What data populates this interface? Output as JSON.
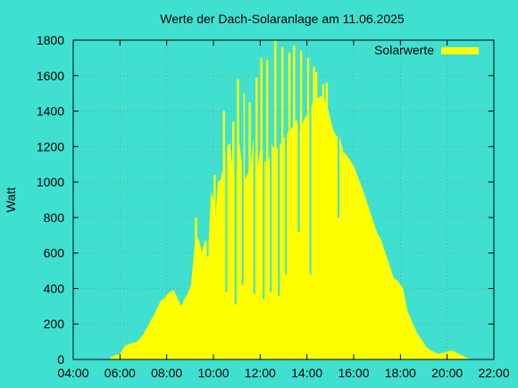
{
  "chart_data": {
    "type": "area",
    "title": "Werte der Dach-Solaranlage am 11.06.2025",
    "xlabel": "",
    "ylabel": "Watt",
    "x_unit": "hours",
    "xlim": [
      4,
      22
    ],
    "ylim": [
      0,
      1800
    ],
    "xticks": [
      "04:00",
      "06:00",
      "08:00",
      "10:00",
      "12:00",
      "14:00",
      "16:00",
      "18:00",
      "20:00",
      "22:00"
    ],
    "yticks": [
      "0",
      "200",
      "400",
      "600",
      "800",
      "1000",
      "1200",
      "1400",
      "1600",
      "1800"
    ],
    "grid": true,
    "legend_position": "top-right",
    "colors": {
      "background": "#40e0d0",
      "series": "#ffff00",
      "axis": "#000000",
      "grid": "#808080"
    },
    "series": [
      {
        "name": "Solarwerte",
        "x": [
          5.6,
          5.75,
          6.0,
          6.25,
          6.5,
          6.75,
          7.0,
          7.25,
          7.5,
          7.75,
          7.95,
          8.05,
          8.3,
          8.6,
          8.9,
          9.05,
          9.2,
          9.3,
          9.4,
          9.5,
          9.65,
          9.8,
          9.9,
          10.0,
          10.1,
          10.2,
          10.3,
          10.4,
          10.55,
          10.7,
          10.85,
          11.0,
          11.1,
          11.3,
          11.45,
          11.6,
          11.7,
          11.9,
          12.05,
          12.2,
          12.4,
          12.5,
          12.65,
          12.75,
          12.9,
          13.05,
          13.2,
          13.4,
          13.55,
          13.7,
          13.85,
          14.0,
          14.15,
          14.25,
          14.45,
          14.55,
          14.7,
          14.85,
          14.95,
          15.1,
          15.25,
          15.4,
          15.55,
          15.7,
          15.85,
          16.0,
          16.2,
          16.4,
          16.6,
          16.8,
          17.0,
          17.15,
          17.3,
          17.5,
          17.7,
          17.9,
          18.1,
          18.3,
          18.5,
          18.7,
          18.9,
          19.1,
          19.3,
          19.6,
          19.9,
          20.2,
          20.5,
          20.8,
          21.0
        ],
        "values": [
          10,
          20,
          30,
          80,
          90,
          100,
          140,
          200,
          260,
          330,
          350,
          370,
          390,
          300,
          370,
          420,
          640,
          690,
          660,
          600,
          670,
          650,
          940,
          900,
          790,
          1000,
          1010,
          1060,
          1190,
          1220,
          1020,
          1080,
          1220,
          1000,
          1040,
          1080,
          1230,
          1080,
          1220,
          1110,
          1130,
          1210,
          1180,
          1190,
          1220,
          1250,
          1280,
          1310,
          1350,
          1290,
          1340,
          1380,
          1400,
          1450,
          1470,
          1480,
          1480,
          1430,
          1380,
          1300,
          1260,
          1250,
          1170,
          1150,
          1120,
          1090,
          1020,
          950,
          870,
          790,
          710,
          680,
          620,
          540,
          460,
          440,
          400,
          270,
          210,
          150,
          110,
          70,
          50,
          30,
          40,
          50,
          30,
          10,
          0
        ],
        "spikes": [
          {
            "x": 9.25,
            "v": 800
          },
          {
            "x": 10.05,
            "v": 1040
          },
          {
            "x": 10.25,
            "v": 900
          },
          {
            "x": 10.45,
            "v": 1400
          },
          {
            "x": 10.85,
            "v": 1340
          },
          {
            "x": 11.05,
            "v": 1580
          },
          {
            "x": 11.3,
            "v": 1500
          },
          {
            "x": 11.55,
            "v": 1450
          },
          {
            "x": 11.85,
            "v": 1590
          },
          {
            "x": 12.05,
            "v": 1700
          },
          {
            "x": 12.3,
            "v": 1690
          },
          {
            "x": 12.65,
            "v": 1800
          },
          {
            "x": 12.95,
            "v": 1760
          },
          {
            "x": 13.25,
            "v": 1730
          },
          {
            "x": 13.45,
            "v": 1770
          },
          {
            "x": 13.75,
            "v": 1740
          },
          {
            "x": 14.05,
            "v": 1700
          },
          {
            "x": 14.3,
            "v": 1650
          },
          {
            "x": 14.4,
            "v": 1620
          },
          {
            "x": 14.7,
            "v": 1550
          },
          {
            "x": 14.85,
            "v": 1560
          }
        ],
        "dips": [
          {
            "x": 8.65,
            "v": 310
          },
          {
            "x": 9.75,
            "v": 580
          },
          {
            "x": 10.55,
            "v": 380
          },
          {
            "x": 10.95,
            "v": 310
          },
          {
            "x": 11.25,
            "v": 420
          },
          {
            "x": 11.75,
            "v": 370
          },
          {
            "x": 12.15,
            "v": 340
          },
          {
            "x": 12.45,
            "v": 380
          },
          {
            "x": 12.8,
            "v": 360
          },
          {
            "x": 13.1,
            "v": 480
          },
          {
            "x": 13.65,
            "v": 720
          },
          {
            "x": 14.15,
            "v": 480
          },
          {
            "x": 15.35,
            "v": 800
          }
        ]
      }
    ]
  }
}
